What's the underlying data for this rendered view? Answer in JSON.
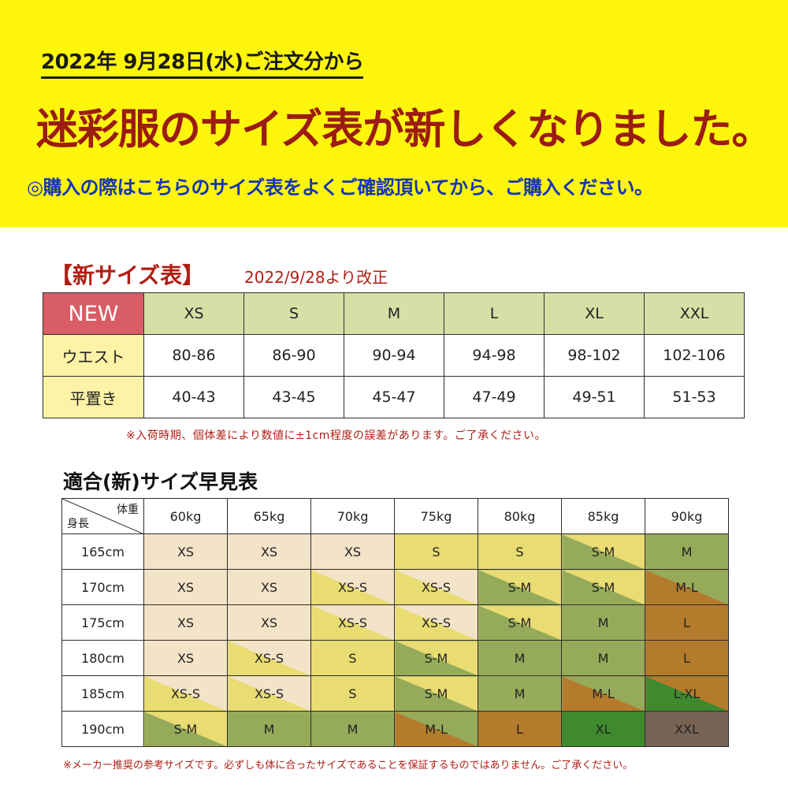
{
  "banner": {
    "date_line": "2022年 9月28日(水)ご注文分から",
    "headline": "迷彩服のサイズ表が新しくなりました。",
    "subline": "◎購入の際はこちらのサイズ表をよくご確認頂いてから、ご購入ください。"
  },
  "size_table": {
    "title": "【新サイズ表】",
    "revised_note": "2022/9/28より改正",
    "corner_label": "NEW",
    "sizes": [
      "XS",
      "S",
      "M",
      "L",
      "XL",
      "XXL"
    ],
    "rows": [
      {
        "label": "ウエスト",
        "values": [
          "80-86",
          "86-90",
          "90-94",
          "94-98",
          "98-102",
          "102-106"
        ]
      },
      {
        "label": "平置き",
        "values": [
          "40-43",
          "43-45",
          "45-47",
          "47-49",
          "49-51",
          "51-53"
        ]
      }
    ],
    "note": "※入荷時期、個体差により数値に±1cm程度の誤差があります。ご了承ください。"
  },
  "quick_table": {
    "title": "適合(新)サイズ早見表",
    "weight_label": "体重",
    "height_label": "身長",
    "weights": [
      "60kg",
      "65kg",
      "70kg",
      "75kg",
      "80kg",
      "85kg",
      "90kg"
    ],
    "rows": [
      {
        "height": "165cm",
        "cells": [
          "XS",
          "XS",
          "XS",
          "S",
          "S",
          "S-M",
          "M"
        ]
      },
      {
        "height": "170cm",
        "cells": [
          "XS",
          "XS",
          "XS-S",
          "XS-S",
          "S-M",
          "S-M",
          "M-L"
        ]
      },
      {
        "height": "175cm",
        "cells": [
          "XS",
          "XS",
          "XS-S",
          "XS-S",
          "S-M",
          "M",
          "L"
        ]
      },
      {
        "height": "180cm",
        "cells": [
          "XS",
          "XS-S",
          "S",
          "S-M",
          "M",
          "M",
          "L"
        ]
      },
      {
        "height": "185cm",
        "cells": [
          "XS-S",
          "XS-S",
          "S",
          "S-M",
          "M",
          "M-L",
          "L-XL"
        ]
      },
      {
        "height": "190cm",
        "cells": [
          "S-M",
          "M",
          "M",
          "M-L",
          "L",
          "XL",
          "XXL"
        ]
      }
    ],
    "size_colors": {
      "XS": "#f3e3c8",
      "S": "#e8dc72",
      "M": "#96ab5a",
      "L": "#b47b2c",
      "XL": "#3f8a2e",
      "XXL": "#776354"
    },
    "note": "※メーカー推奨の参考サイズです。必ずしも体に合ったサイズであることを保証するものではありません。ご了承ください。"
  }
}
